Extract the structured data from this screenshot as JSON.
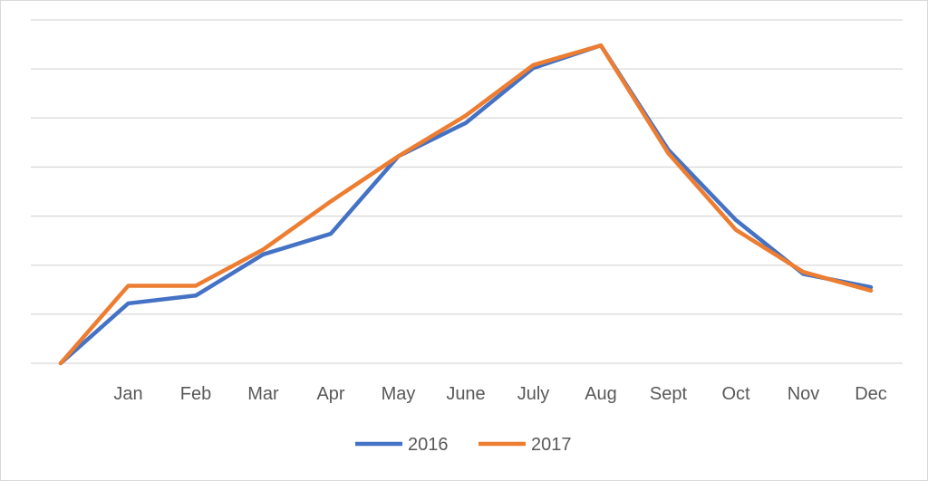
{
  "chart_data": {
    "type": "line",
    "title": "",
    "xlabel": "",
    "ylabel": "",
    "categories": [
      "",
      "Jan",
      "Feb",
      "Mar",
      "Apr",
      "May",
      "June",
      "July",
      "Aug",
      "Sept",
      "Oct",
      "Nov",
      "Dec"
    ],
    "ylim": [
      0,
      7
    ],
    "grid": true,
    "y_tick_labels_shown": false,
    "legend_position": "bottom",
    "series": [
      {
        "name": "2016",
        "color": "#4472c4",
        "values": [
          0,
          1.22,
          1.38,
          2.22,
          2.64,
          4.22,
          4.9,
          6.02,
          6.48,
          4.35,
          2.92,
          1.82,
          1.55
        ]
      },
      {
        "name": "2017",
        "color": "#ed7d31",
        "values": [
          0,
          1.58,
          1.58,
          2.32,
          3.3,
          4.22,
          5.05,
          6.08,
          6.48,
          4.28,
          2.72,
          1.86,
          1.48
        ]
      }
    ]
  }
}
